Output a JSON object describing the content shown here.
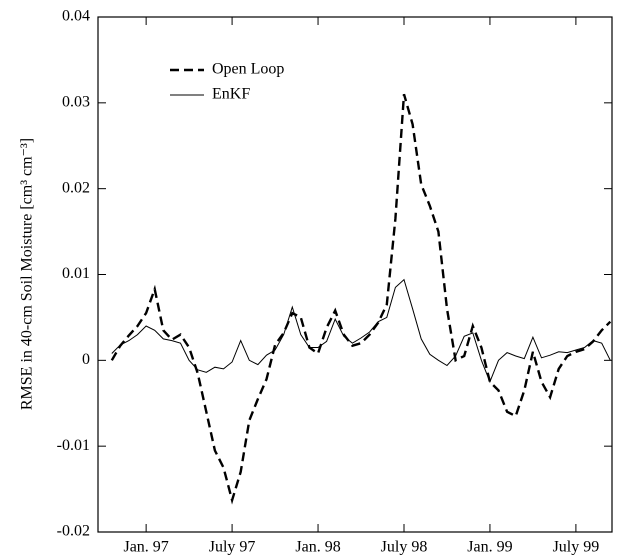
{
  "chart_data": {
    "type": "line",
    "y_label": "RMSE in 40-cm Soil Moisture [cm³ cm⁻³]",
    "x": [
      1996.8,
      1996.85,
      1996.9,
      1996.95,
      1997.0,
      1997.05,
      1997.1,
      1997.15,
      1997.2,
      1997.25,
      1997.3,
      1997.35,
      1997.4,
      1997.45,
      1997.5,
      1997.55,
      1997.6,
      1997.65,
      1997.7,
      1997.75,
      1997.8,
      1997.85,
      1997.9,
      1997.95,
      1998.0,
      1998.05,
      1998.1,
      1998.15,
      1998.2,
      1998.25,
      1998.3,
      1998.35,
      1998.4,
      1998.45,
      1998.5,
      1998.55,
      1998.6,
      1998.65,
      1998.7,
      1998.75,
      1998.8,
      1998.85,
      1998.9,
      1998.95,
      1999.0,
      1999.05,
      1999.1,
      1999.15,
      1999.2,
      1999.25,
      1999.3,
      1999.35,
      1999.4,
      1999.45,
      1999.5,
      1999.55,
      1999.6,
      1999.65,
      1999.7
    ],
    "series": [
      {
        "name": "Open Loop",
        "color": "#000000",
        "line_style": "dashed",
        "values": [
          0.0,
          0.0017,
          0.0029,
          0.004,
          0.0055,
          0.0083,
          0.0035,
          0.0024,
          0.003,
          0.0015,
          -0.0015,
          -0.006,
          -0.0105,
          -0.0125,
          -0.0163,
          -0.013,
          -0.007,
          -0.0045,
          -0.0022,
          0.0018,
          0.0032,
          0.0055,
          0.005,
          0.0015,
          0.0008,
          0.0038,
          0.0058,
          0.003,
          0.0017,
          0.002,
          0.003,
          0.0044,
          0.0065,
          0.0165,
          0.031,
          0.0275,
          0.0205,
          0.018,
          0.015,
          0.006,
          0.0,
          0.0005,
          0.004,
          0.0015,
          -0.0025,
          -0.0035,
          -0.006,
          -0.0065,
          -0.0035,
          0.001,
          -0.0025,
          -0.0043,
          -0.001,
          0.0005,
          0.001,
          0.0013,
          0.0022,
          0.0035,
          0.0045
        ]
      },
      {
        "name": "EnKF",
        "color": "#000000",
        "line_style": "solid",
        "values": [
          0.0008,
          0.0018,
          0.0023,
          0.003,
          0.004,
          0.0035,
          0.0025,
          0.0023,
          0.002,
          0.0,
          -0.0011,
          -0.0014,
          -0.0008,
          -0.001,
          -0.0002,
          0.0023,
          0.0,
          -0.0005,
          0.0006,
          0.0012,
          0.003,
          0.0062,
          0.003,
          0.0015,
          0.0015,
          0.0022,
          0.0048,
          0.0028,
          0.002,
          0.0026,
          0.0033,
          0.0045,
          0.005,
          0.0085,
          0.0094,
          0.006,
          0.0025,
          0.0007,
          0.0,
          -0.0006,
          0.0005,
          0.0028,
          0.0032,
          0.0,
          -0.0025,
          0.0,
          0.0009,
          0.0005,
          0.0002,
          0.0027,
          0.0003,
          0.0006,
          0.001,
          0.0009,
          0.0012,
          0.0015,
          0.0023,
          0.002,
          0.0
        ]
      }
    ],
    "xlim": [
      1996.72,
      1999.71
    ],
    "xticks": [
      {
        "value": 1997,
        "label": "Jan. 97"
      },
      {
        "value": 1997.5,
        "label": "July 97"
      },
      {
        "value": 1998,
        "label": "Jan. 98"
      },
      {
        "value": 1998.5,
        "label": "July 98"
      },
      {
        "value": 1999,
        "label": "Jan. 99"
      },
      {
        "value": 1999.5,
        "label": "July 99"
      }
    ],
    "ylim": [
      -0.02,
      0.04
    ],
    "yticks": [
      -0.02,
      -0.01,
      0,
      0.01,
      0.02,
      0.03,
      0.04
    ],
    "legend": "upper left",
    "grid": false
  }
}
